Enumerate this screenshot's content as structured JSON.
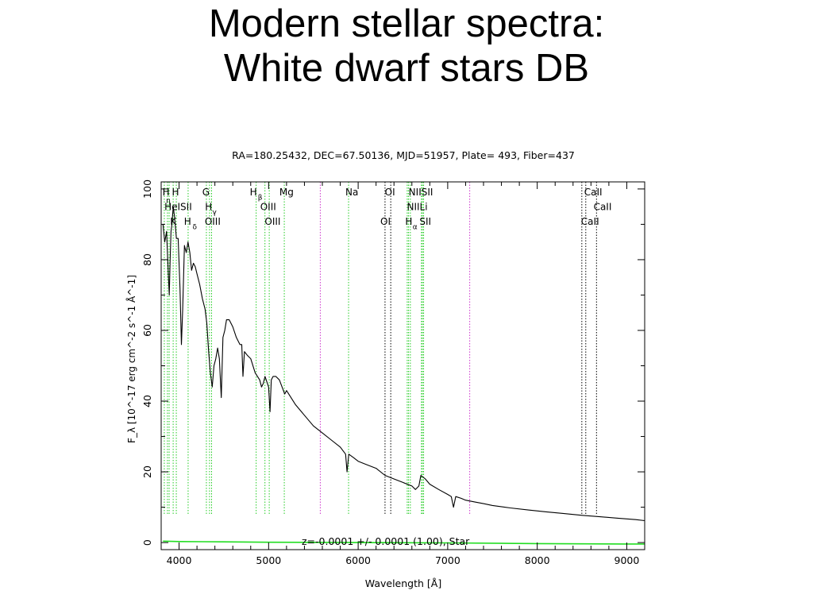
{
  "slide": {
    "title_line1": "Modern stellar spectra:",
    "title_line2": "White dwarf stars DB"
  },
  "chart_data": {
    "type": "line",
    "title": "RA=180.25432, DEC=67.50136, MJD=51957, Plate= 493, Fiber=437",
    "xlabel": "Wavelength [Å]",
    "ylabel": "F_λ [10^-17 erg cm^-2 s^-1 Å^-1]",
    "xlim": [
      3800,
      9200
    ],
    "ylim": [
      -2,
      102
    ],
    "xticks": [
      4000,
      5000,
      6000,
      7000,
      8000,
      9000
    ],
    "yticks": [
      0,
      20,
      40,
      60,
      80,
      100
    ],
    "grid": false,
    "annotation": "z=-0.0001 +/- 0.0001 (1.00), Star",
    "colors": {
      "spectrum": "#000000",
      "error": "#22dd22",
      "line_green": "#22cc22",
      "line_purple": "#cc33cc",
      "line_black": "#000000"
    },
    "series": [
      {
        "role": "spectrum",
        "x": [
          3820,
          3840,
          3860,
          3880,
          3890,
          3900,
          3910,
          3920,
          3935,
          3950,
          3970,
          3990,
          4010,
          4026,
          4040,
          4060,
          4080,
          4100,
          4120,
          4140,
          4160,
          4180,
          4200,
          4230,
          4260,
          4290,
          4310,
          4330,
          4350,
          4370,
          4390,
          4410,
          4430,
          4450,
          4471,
          4490,
          4510,
          4530,
          4560,
          4600,
          4640,
          4680,
          4700,
          4713,
          4730,
          4760,
          4800,
          4850,
          4900,
          4921,
          4940,
          4960,
          5000,
          5016,
          5030,
          5050,
          5080,
          5120,
          5180,
          5200,
          5300,
          5400,
          5500,
          5600,
          5700,
          5800,
          5860,
          5876,
          5895,
          5950,
          6000,
          6100,
          6200,
          6300,
          6400,
          6500,
          6600,
          6640,
          6678,
          6700,
          6750,
          6800,
          6900,
          7000,
          7040,
          7065,
          7090,
          7150,
          7200,
          7300,
          7400,
          7500,
          7700,
          7900,
          8100,
          8300,
          8500,
          8700,
          8900,
          9100,
          9200
        ],
        "y": [
          90,
          85,
          88,
          76,
          70,
          80,
          88,
          90,
          95,
          92,
          86,
          86,
          72,
          56,
          66,
          84,
          82,
          85,
          82,
          77,
          79,
          78,
          76,
          73,
          69,
          66,
          62,
          54,
          48,
          44,
          50,
          52,
          55,
          52,
          41,
          58,
          60,
          63,
          63,
          61,
          58,
          56,
          56,
          47,
          54,
          53,
          52,
          48,
          46,
          44,
          45,
          47,
          44,
          37,
          46,
          47,
          47,
          46,
          42,
          43,
          39,
          36,
          33,
          31,
          29,
          27,
          25,
          20,
          25,
          24,
          23,
          22,
          21,
          19,
          18,
          17,
          16,
          15,
          16,
          19,
          18,
          16.5,
          15,
          13.6,
          13,
          10,
          13,
          12.5,
          12,
          11.5,
          11,
          10.5,
          9.8,
          9.2,
          8.7,
          8.2,
          7.7,
          7.3,
          6.9,
          6.5,
          6.2
        ]
      },
      {
        "role": "error",
        "x": [
          3820,
          4000,
          4500,
          5000,
          6000,
          7000,
          8000,
          9000,
          9200
        ],
        "y": [
          0.4,
          0.3,
          0.2,
          0.1,
          0.0,
          -0.1,
          -0.3,
          -0.4,
          -0.4
        ]
      }
    ],
    "spectral_lines": [
      {
        "x": 3835,
        "color": "green",
        "labels": []
      },
      {
        "x": 3870,
        "color": "green",
        "labels": [
          "HeISII"
        ]
      },
      {
        "x": 3889,
        "color": "green",
        "labels": [
          "H_η"
        ]
      },
      {
        "x": 3934,
        "color": "green",
        "labels": [
          "K"
        ]
      },
      {
        "x": 3969,
        "color": "green",
        "labels": [
          "H"
        ]
      },
      {
        "x": 4101,
        "color": "green",
        "labels": [
          "H_δ"
        ]
      },
      {
        "x": 4305,
        "color": "green",
        "labels": [
          "G"
        ]
      },
      {
        "x": 4340,
        "color": "green",
        "labels": [
          "H_γ"
        ]
      },
      {
        "x": 4363,
        "color": "green",
        "labels": [
          "OIII"
        ]
      },
      {
        "x": 4861,
        "color": "green",
        "labels": [
          "H_β"
        ]
      },
      {
        "x": 4959,
        "color": "green",
        "labels": [
          "OIII"
        ]
      },
      {
        "x": 5007,
        "color": "green",
        "labels": [
          "OIII"
        ]
      },
      {
        "x": 5175,
        "color": "green",
        "labels": [
          "Mg"
        ]
      },
      {
        "x": 5577,
        "color": "purple",
        "labels": []
      },
      {
        "x": 5893,
        "color": "green",
        "labels": [
          "Na"
        ]
      },
      {
        "x": 6300,
        "color": "black",
        "labels": [
          "OI"
        ]
      },
      {
        "x": 6364,
        "color": "black",
        "labels": [
          "OI"
        ]
      },
      {
        "x": 6548,
        "color": "green",
        "labels": [
          "NII"
        ]
      },
      {
        "x": 6563,
        "color": "green",
        "labels": [
          "H_α"
        ]
      },
      {
        "x": 6583,
        "color": "green",
        "labels": [
          "NII"
        ]
      },
      {
        "x": 6707,
        "color": "green",
        "labels": [
          "Li"
        ]
      },
      {
        "x": 6717,
        "color": "green",
        "labels": [
          "SII"
        ]
      },
      {
        "x": 6731,
        "color": "green",
        "labels": [
          "SII"
        ]
      },
      {
        "x": 7246,
        "color": "purple",
        "labels": []
      },
      {
        "x": 8498,
        "color": "black",
        "labels": [
          "CaII"
        ]
      },
      {
        "x": 8542,
        "color": "black",
        "labels": [
          "CaII"
        ]
      },
      {
        "x": 8662,
        "color": "black",
        "labels": [
          "CaII"
        ]
      }
    ],
    "line_label_positions": [
      {
        "text": "H",
        "x": 3855,
        "row": 0
      },
      {
        "text": "H",
        "x": 3960,
        "row": 0
      },
      {
        "text": "η",
        "x": 3880,
        "row": 0.5,
        "small": true
      },
      {
        "text": "HeISII",
        "x": 3990,
        "row": 1
      },
      {
        "text": "K",
        "x": 3935,
        "row": 2
      },
      {
        "text": "H",
        "x": 4095,
        "row": 2
      },
      {
        "text": "δ",
        "x": 4175,
        "row": 2.3,
        "small": true
      },
      {
        "text": "G",
        "x": 4300,
        "row": 0
      },
      {
        "text": "H",
        "x": 4330,
        "row": 1
      },
      {
        "text": "γ",
        "x": 4395,
        "row": 1.3,
        "small": true
      },
      {
        "text": "OIII",
        "x": 4375,
        "row": 2
      },
      {
        "text": "H",
        "x": 4830,
        "row": 0
      },
      {
        "text": "β",
        "x": 4905,
        "row": 0.3,
        "small": true
      },
      {
        "text": "Mg",
        "x": 5200,
        "row": 0
      },
      {
        "text": "OIII",
        "x": 4995,
        "row": 1
      },
      {
        "text": "OIII",
        "x": 5045,
        "row": 2
      },
      {
        "text": "Na",
        "x": 5930,
        "row": 0
      },
      {
        "text": "OI",
        "x": 6355,
        "row": 0
      },
      {
        "text": "OI",
        "x": 6305,
        "row": 2
      },
      {
        "text": "NIISII",
        "x": 6700,
        "row": 0
      },
      {
        "text": "NIILi",
        "x": 6660,
        "row": 1
      },
      {
        "text": "H",
        "x": 6565,
        "row": 2
      },
      {
        "text": "α",
        "x": 6635,
        "row": 2.3,
        "small": true
      },
      {
        "text": "SII",
        "x": 6750,
        "row": 2
      },
      {
        "text": "CaII",
        "x": 8625,
        "row": 0
      },
      {
        "text": "CaII",
        "x": 8730,
        "row": 1
      },
      {
        "text": "CaII",
        "x": 8590,
        "row": 2
      }
    ]
  }
}
